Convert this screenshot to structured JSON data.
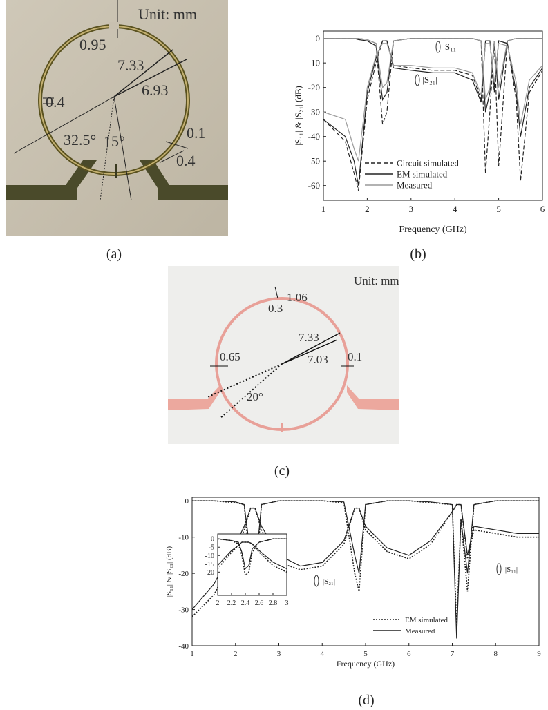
{
  "figure_a": {
    "labels": [
      "Unit: mm",
      "0.95",
      "7.33",
      "6.93",
      "0.4",
      "32.5°",
      "15°",
      "0.1",
      "0.4"
    ]
  },
  "figure_c": {
    "labels": [
      "Unit: mm",
      "1.06",
      "0.3",
      "7.33",
      "7.03",
      "0.65",
      "0.1",
      "20°"
    ]
  },
  "captions": [
    "(a)",
    "(b)",
    "(c)",
    "(d)"
  ],
  "chart_data": [
    {
      "type": "line",
      "xlabel": "Frequency (GHz)",
      "ylabel": "|S₁₁| & |S₂₁| (dB)",
      "x": [
        1,
        1.5,
        1.7,
        1.8,
        2,
        2.2,
        2.35,
        2.45,
        2.6,
        3,
        3.5,
        4,
        4.4,
        4.6,
        4.7,
        4.8,
        4.9,
        5,
        5.2,
        5.4,
        5.5,
        5.7,
        6
      ],
      "xlim": [
        1,
        6
      ],
      "xticks": [
        1,
        2,
        3,
        4,
        5,
        6
      ],
      "ylim": [
        -66,
        3
      ],
      "yticks": [
        0,
        -10,
        -20,
        -30,
        -40,
        -50,
        -60
      ],
      "legend": "lower left",
      "annotations": [
        "|S₁₁|",
        "|S₂₁|"
      ],
      "series": [
        {
          "name": "Circuit simulated",
          "color": "#222222",
          "dash": "dashed",
          "curves": [
            {
              "values": [
                0,
                0,
                0,
                0,
                -0.5,
                -2,
                -35,
                -30,
                -1,
                0,
                0,
                0,
                0,
                -1,
                -55,
                -30,
                -1,
                -52,
                -1,
                0,
                0,
                0,
                0
              ]
            },
            {
              "values": [
                -33,
                -42,
                -55,
                -62,
                -25,
                -10,
                -1,
                -1,
                -11,
                -12,
                -13,
                -13,
                -15,
                -25,
                -1,
                -1,
                -22,
                -1,
                -2,
                -25,
                -58,
                -22,
                -13
              ]
            }
          ]
        },
        {
          "name": "EM simulated",
          "color": "#222222",
          "dash": "solid",
          "curves": [
            {
              "values": [
                0,
                0,
                0,
                -0.5,
                -1,
                -3,
                -25,
                -22,
                -1,
                0,
                0,
                0,
                0,
                -1,
                -30,
                -22,
                -1,
                -25,
                -1,
                0,
                0,
                0,
                0
              ]
            },
            {
              "values": [
                -33,
                -40,
                -50,
                -60,
                -22,
                -8,
                -1,
                -1,
                -12,
                -13,
                -14,
                -14,
                -17,
                -26,
                -1,
                -1,
                -20,
                -1,
                -2,
                -22,
                -40,
                -20,
                -12
              ]
            }
          ]
        },
        {
          "name": "Measured",
          "color": "#999999",
          "dash": "solid",
          "curves": [
            {
              "values": [
                0,
                0,
                0,
                0,
                -0.5,
                -2,
                -20,
                -18,
                -1,
                0,
                0,
                0,
                0,
                -1,
                -25,
                -20,
                -1,
                -20,
                -1,
                0,
                0,
                0,
                0
              ]
            },
            {
              "values": [
                -30,
                -33,
                -45,
                -50,
                -20,
                -7,
                -2,
                -2,
                -11,
                -11,
                -12,
                -12,
                -14,
                -23,
                -2,
                -2,
                -18,
                -2,
                -3,
                -18,
                -35,
                -17,
                -11
              ]
            }
          ]
        }
      ]
    },
    {
      "type": "line",
      "xlabel": "Frequency (GHz)",
      "ylabel": "|S₁₁| & |S₂₁| (dB)",
      "x": [
        1,
        1.5,
        2,
        2.2,
        2.35,
        2.45,
        2.6,
        3,
        3.5,
        4,
        4.5,
        4.75,
        4.85,
        5,
        5.5,
        6,
        6.5,
        7,
        7.1,
        7.2,
        7.35,
        7.5,
        8,
        8.5,
        9
      ],
      "xlim": [
        1,
        9
      ],
      "xticks": [
        1,
        2,
        3,
        4,
        5,
        6,
        7,
        8,
        9
      ],
      "ylim": [
        -40,
        1
      ],
      "yticks": [
        0,
        -10,
        -20,
        -30,
        -40
      ],
      "legend": "lower right",
      "annotations": [
        "|S₂₁|",
        "|S₁₁|"
      ],
      "series": [
        {
          "name": "EM simulated",
          "color": "#222222",
          "dash": "dotted",
          "curves": [
            {
              "values": [
                0,
                0,
                -0.5,
                -1,
                -20,
                -25,
                -1,
                0,
                0,
                0,
                -0.5,
                -20,
                -25,
                -1,
                0,
                0,
                -0.5,
                -1,
                -35,
                -5,
                -25,
                -1,
                0,
                0,
                0
              ]
            },
            {
              "values": [
                -32,
                -26,
                -14,
                -8,
                -2,
                -2,
                -8,
                -17,
                -19,
                -18,
                -12,
                -2,
                -2,
                -8,
                -14,
                -16,
                -12,
                -3,
                -1,
                -1,
                -16,
                -8,
                -9,
                -10,
                -10
              ]
            }
          ]
        },
        {
          "name": "Measured",
          "color": "#222222",
          "dash": "solid",
          "curves": [
            {
              "values": [
                0,
                0,
                -0.3,
                -1,
                -15,
                -20,
                -1,
                0,
                0,
                0,
                -0.3,
                -15,
                -20,
                -1,
                0,
                0,
                -0.3,
                -1,
                -38,
                -5,
                -20,
                -1,
                0,
                0,
                0
              ]
            },
            {
              "values": [
                -30,
                -23,
                -12,
                -7,
                -2,
                -2,
                -7,
                -15,
                -18,
                -17,
                -11,
                -2,
                -2,
                -7,
                -13,
                -15,
                -11,
                -3,
                -1,
                -1,
                -15,
                -7,
                -8,
                -9,
                -9
              ]
            }
          ]
        }
      ]
    },
    {
      "type": "line",
      "x": [
        2,
        2.2,
        2.3,
        2.35,
        2.4,
        2.45,
        2.5,
        2.6,
        2.8,
        3
      ],
      "xlim": [
        2,
        3
      ],
      "xticks": [
        2,
        2.2,
        2.4,
        2.6,
        2.8,
        3
      ],
      "ylim": [
        -34,
        3
      ],
      "yticks": [
        0,
        -5,
        -10,
        -15,
        -20
      ],
      "series": [
        {
          "color": "#222222",
          "dash": "dotted",
          "curves": [
            {
              "values": [
                0,
                -1,
                -3,
                -10,
                -22,
                -20,
                -8,
                -2,
                0,
                0
              ]
            },
            {
              "values": [
                -18,
                -8,
                -4,
                -2,
                -2,
                -2,
                -3,
                -8,
                -16,
                -20
              ]
            }
          ]
        },
        {
          "color": "#222222",
          "dash": "solid",
          "curves": [
            {
              "values": [
                0,
                -1,
                -2,
                -8,
                -18,
                -16,
                -6,
                -2,
                0,
                0
              ]
            },
            {
              "values": [
                -16,
                -7,
                -4,
                -2,
                -2,
                -2,
                -3,
                -7,
                -14,
                -18
              ]
            }
          ]
        }
      ]
    }
  ]
}
